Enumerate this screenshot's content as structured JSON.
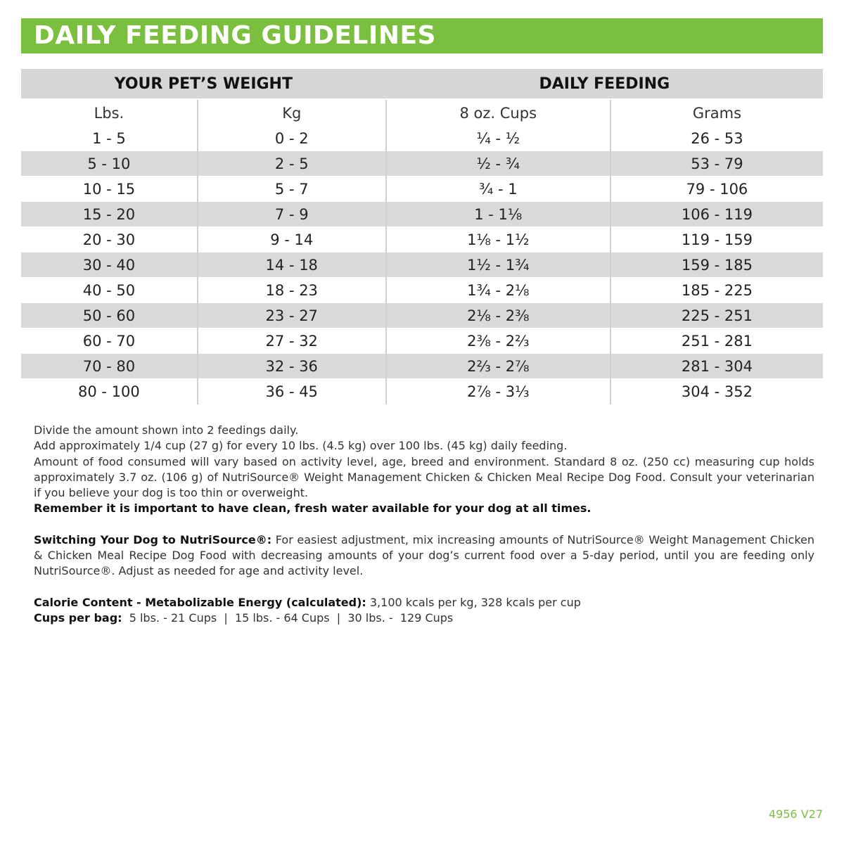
{
  "title": "DAILY FEEDING GUIDELINES",
  "table": {
    "group_headers": [
      "YOUR PET’S WEIGHT",
      "DAILY FEEDING"
    ],
    "columns": [
      "Lbs.",
      "Kg",
      "8 oz. Cups",
      "Grams"
    ],
    "rows": [
      [
        "1 - 5",
        "0 - 2",
        "¼ - ½",
        "26 - 53"
      ],
      [
        "5 - 10",
        "2 - 5",
        "½ - ¾",
        "53 - 79"
      ],
      [
        "10 - 15",
        "5 - 7",
        "¾ - 1",
        "79 - 106"
      ],
      [
        "15 - 20",
        "7 - 9",
        "1 - 1⅛",
        "106 - 119"
      ],
      [
        "20 - 30",
        "9 - 14",
        "1⅛ - 1½",
        "119 - 159"
      ],
      [
        "30 - 40",
        "14 - 18",
        "1½ - 1¾",
        "159 - 185"
      ],
      [
        "40 - 50",
        "18 - 23",
        "1¾ - 2⅛",
        "185 - 225"
      ],
      [
        "50 - 60",
        "23 - 27",
        "2⅛ - 2⅜",
        "225 - 251"
      ],
      [
        "60 - 70",
        "27 - 32",
        "2⅜ - 2⅔",
        "251 - 281"
      ],
      [
        "70 - 80",
        "32 - 36",
        "2⅔ - 2⅞",
        "281 - 304"
      ],
      [
        "80 - 100",
        "36 - 45",
        "2⅞ - 3⅓",
        "304 - 352"
      ]
    ]
  },
  "notes": {
    "line1": "Divide the amount shown into 2 feedings daily.",
    "line2": "Add approximately 1/4 cup (27 g) for every 10 lbs. (4.5 kg) over 100 lbs. (45 kg) daily feeding.",
    "line3": "Amount of food consumed will vary based on activity level, age, breed and environment. Standard 8 oz. (250 cc) measuring cup holds approximately 3.7 oz. (106 g) of NutriSource® Weight Management Chicken & Chicken Meal Recipe Dog Food. Consult your veterinarian if you believe your dog is too thin or overweight.",
    "line4": "Remember it is important to have clean, fresh water available for your dog at all times.",
    "switching_label": "Switching Your Dog to NutriSource®:",
    "switching_text": " For easiest adjustment, mix increasing amounts of NutriSource® Weight Management Chicken & Chicken Meal Recipe Dog Food with decreasing amounts of your dog’s current food over a 5-day period, until you are feeding only NutriSource®. Adjust as needed for age and activity level.",
    "calorie_label": "Calorie Content - Metabolizable Energy (calculated):",
    "calorie_text": " 3,100 kcals per kg, 328 kcals per cup",
    "cups_label": "Cups per bag:",
    "cups_text": "  5 lbs. - 21 Cups  |  15 lbs. - 64 Cups  |  30 lbs. -  129 Cups"
  },
  "code": "4956 V27",
  "colors": {
    "accent": "#7bbf3e",
    "row_shade": "#d9d9d9"
  }
}
